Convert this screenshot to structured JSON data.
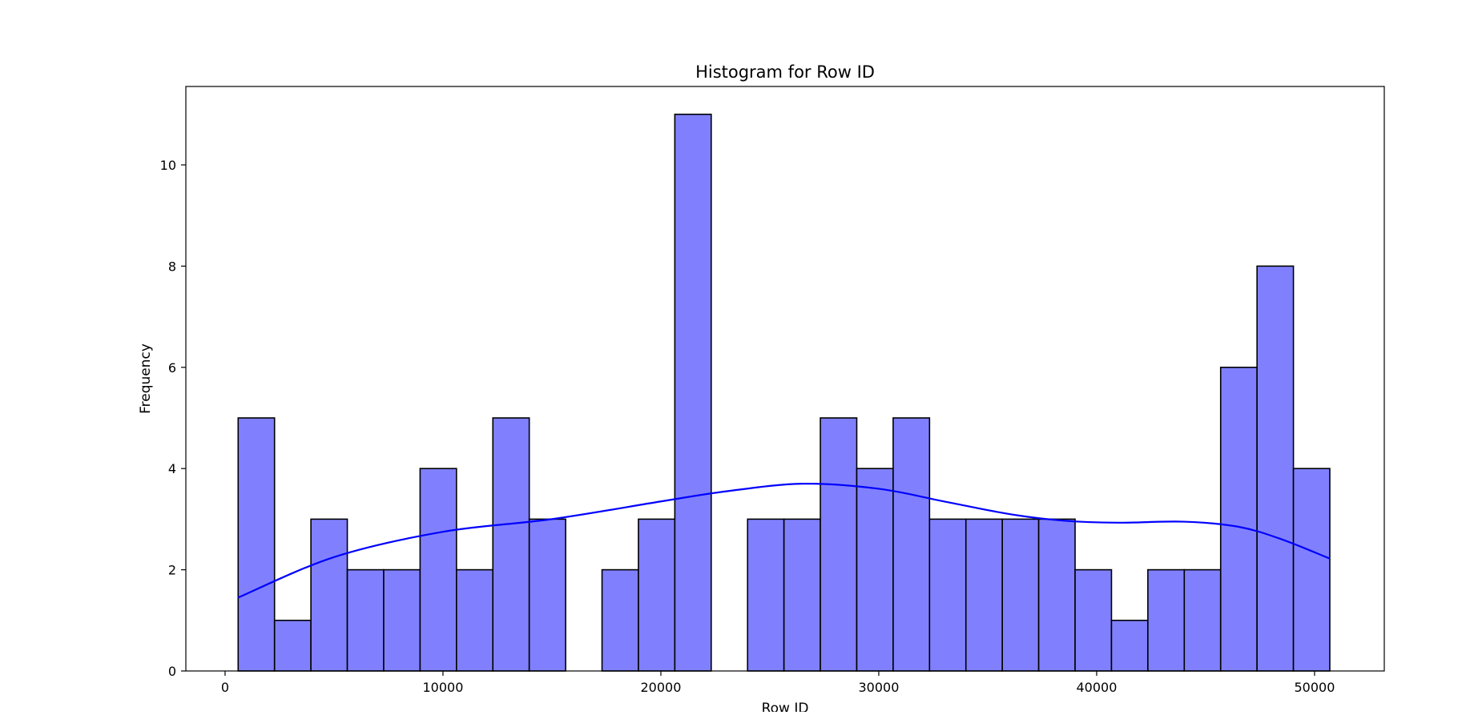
{
  "chart_data": {
    "type": "bar",
    "title": "Histogram for Row ID",
    "xlabel": "Row ID",
    "ylabel": "Frequency",
    "xlim": [
      -1800,
      53200
    ],
    "ylim": [
      0,
      11.55
    ],
    "x_ticks": [
      0,
      10000,
      20000,
      30000,
      40000,
      50000
    ],
    "y_ticks": [
      0,
      2,
      4,
      6,
      8,
      10
    ],
    "bin_edges": [
      600,
      2270,
      3940,
      5610,
      7280,
      8950,
      10620,
      12290,
      13960,
      15630,
      17300,
      18970,
      20640,
      22310,
      23980,
      25650,
      27320,
      28990,
      30660,
      32330,
      34000,
      35670,
      37340,
      39010,
      40680,
      42350,
      44020,
      45690,
      47360,
      49030,
      50700
    ],
    "values": [
      5,
      1,
      3,
      2,
      2,
      4,
      2,
      5,
      3,
      0,
      2,
      3,
      11,
      0,
      3,
      3,
      5,
      4,
      5,
      3,
      3,
      3,
      3,
      2,
      1,
      2,
      2,
      6,
      8,
      4
    ],
    "kde": {
      "x": [
        600,
        5000,
        10000,
        15000,
        20000,
        23000,
        26500,
        30000,
        33000,
        36000,
        38500,
        41000,
        44000,
        46500,
        48500,
        50700
      ],
      "y": [
        1.45,
        2.25,
        2.75,
        3.0,
        3.35,
        3.55,
        3.7,
        3.6,
        3.35,
        3.1,
        2.97,
        2.93,
        2.95,
        2.85,
        2.6,
        2.22
      ]
    },
    "bar_color": "#8080ff",
    "bar_edge_color": "#000000",
    "kde_color": "#0000ff",
    "grid": false,
    "legend": "none"
  }
}
